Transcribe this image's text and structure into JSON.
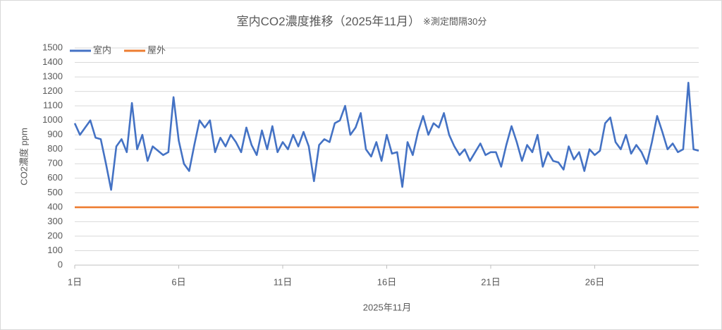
{
  "chart_data": {
    "type": "line",
    "title": "室内CO2濃度推移（2025年11月）",
    "subtitle": "※測定間隔30分",
    "x_label": "2025年11月",
    "y_label": "CO2濃度 ppm",
    "xlim": [
      1,
      31
    ],
    "xticks": [
      {
        "value": 1,
        "label": "1日"
      },
      {
        "value": 6,
        "label": "6日"
      },
      {
        "value": 11,
        "label": "11日"
      },
      {
        "value": 16,
        "label": "16日"
      },
      {
        "value": 21,
        "label": "21日"
      },
      {
        "value": 26,
        "label": "26日"
      }
    ],
    "ylim": [
      0,
      1500
    ],
    "yticks": [
      0,
      100,
      200,
      300,
      400,
      500,
      600,
      700,
      800,
      900,
      1000,
      1100,
      1200,
      1300,
      1400,
      1500
    ],
    "grid": true,
    "legend": "top-left",
    "series": [
      {
        "name": "室内",
        "color": "#4472c4",
        "x": [
          1,
          1.25,
          1.5,
          1.75,
          2,
          2.25,
          2.5,
          2.75,
          3,
          3.25,
          3.5,
          3.75,
          4,
          4.25,
          4.5,
          4.75,
          5,
          5.25,
          5.5,
          5.75,
          6,
          6.25,
          6.5,
          6.75,
          7,
          7.25,
          7.5,
          7.75,
          8,
          8.25,
          8.5,
          8.75,
          9,
          9.25,
          9.5,
          9.75,
          10,
          10.25,
          10.5,
          10.75,
          11,
          11.25,
          11.5,
          11.75,
          12,
          12.25,
          12.5,
          12.75,
          13,
          13.25,
          13.5,
          13.75,
          14,
          14.25,
          14.5,
          14.75,
          15,
          15.25,
          15.5,
          15.75,
          16,
          16.25,
          16.5,
          16.75,
          17,
          17.25,
          17.5,
          17.75,
          18,
          18.25,
          18.5,
          18.75,
          19,
          19.25,
          19.5,
          19.75,
          20,
          20.25,
          20.5,
          20.75,
          21,
          21.25,
          21.5,
          21.75,
          22,
          22.25,
          22.5,
          22.75,
          23,
          23.25,
          23.5,
          23.75,
          24,
          24.25,
          24.5,
          24.75,
          25,
          25.25,
          25.5,
          25.75,
          26,
          26.25,
          26.5,
          26.75,
          27,
          27.25,
          27.5,
          27.75,
          28,
          28.25,
          28.5,
          28.75,
          29,
          29.25,
          29.5,
          29.75,
          30,
          30.25,
          30.5,
          30.75,
          31
        ],
        "values": [
          980,
          900,
          950,
          1000,
          880,
          870,
          700,
          520,
          820,
          870,
          780,
          1120,
          800,
          900,
          720,
          820,
          790,
          760,
          780,
          1160,
          860,
          700,
          650,
          830,
          1000,
          950,
          1000,
          780,
          880,
          820,
          900,
          850,
          780,
          950,
          830,
          760,
          930,
          800,
          960,
          780,
          850,
          800,
          900,
          820,
          920,
          820,
          580,
          830,
          870,
          850,
          980,
          1000,
          1100,
          900,
          950,
          1050,
          800,
          750,
          850,
          720,
          900,
          770,
          780,
          540,
          850,
          760,
          920,
          1030,
          900,
          980,
          950,
          1050,
          900,
          820,
          760,
          800,
          720,
          780,
          840,
          760,
          780,
          780,
          680,
          830,
          960,
          850,
          720,
          830,
          780,
          900,
          680,
          780,
          720,
          710,
          660,
          820,
          730,
          780,
          650,
          800,
          760,
          790,
          980,
          1020,
          850,
          800,
          900,
          770,
          830,
          780,
          700,
          850,
          1030,
          920,
          800,
          840,
          780,
          800,
          1260,
          800,
          790
        ]
      },
      {
        "name": "屋外",
        "color": "#ed7d31",
        "x": [
          1,
          31
        ],
        "values": [
          400,
          400
        ]
      }
    ]
  }
}
